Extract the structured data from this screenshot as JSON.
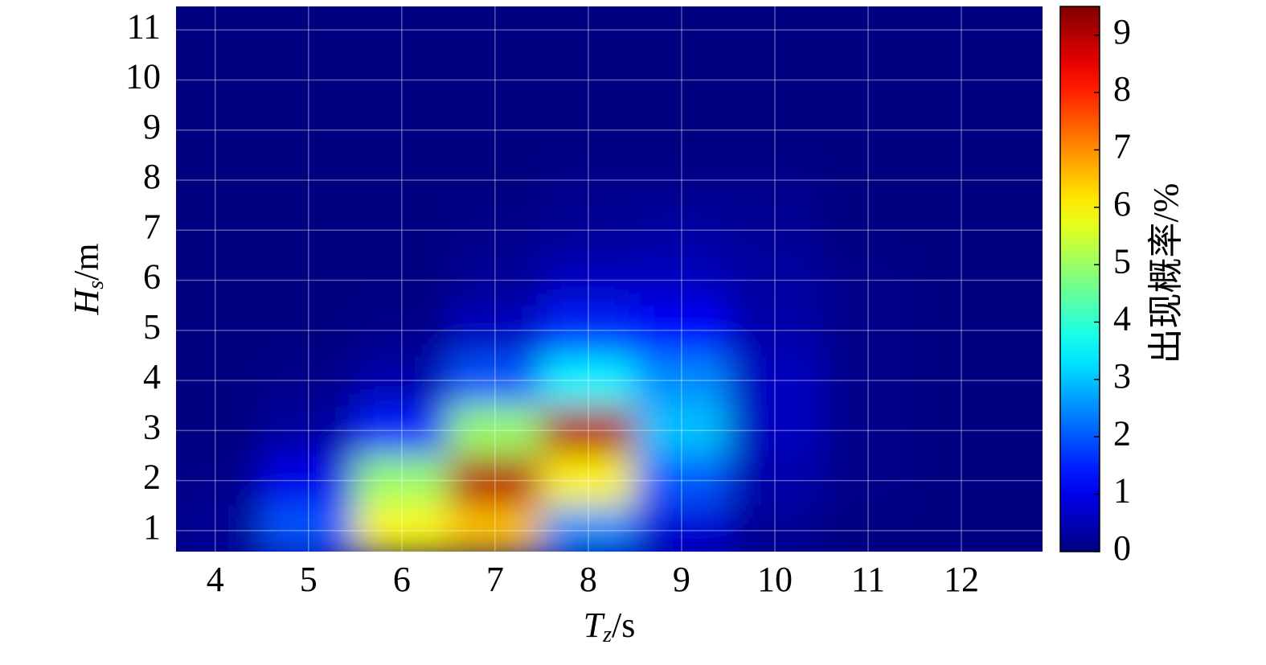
{
  "chart_data": {
    "type": "heatmap",
    "xlabel": [
      "T",
      "z",
      "/s"
    ],
    "ylabel": [
      "H",
      "s",
      "/m"
    ],
    "colorbar_label": "出现概率/%",
    "x": [
      4,
      5,
      6,
      7,
      8,
      9,
      10,
      11,
      12
    ],
    "y": [
      1,
      2,
      3,
      4,
      5,
      6,
      7,
      8,
      9,
      10,
      11
    ],
    "z": [
      [
        0.2,
        2,
        6,
        6.5,
        2.5,
        0.8,
        0.2,
        0,
        0
      ],
      [
        0.1,
        1,
        5,
        9,
        6,
        2,
        0.4,
        0.1,
        0
      ],
      [
        0,
        0.3,
        1.5,
        5,
        9,
        3,
        0.6,
        0.1,
        0
      ],
      [
        0,
        0.1,
        0.4,
        2,
        3.5,
        2.5,
        0.6,
        0.1,
        0
      ],
      [
        0,
        0,
        0.1,
        0.6,
        1.5,
        1.2,
        0.4,
        0.1,
        0
      ],
      [
        0,
        0,
        0,
        0.2,
        0.6,
        0.6,
        0.3,
        0.1,
        0
      ],
      [
        0,
        0,
        0,
        0.1,
        0.2,
        0.3,
        0.2,
        0,
        0
      ],
      [
        0,
        0,
        0,
        0,
        0.1,
        0.1,
        0.1,
        0,
        0
      ],
      [
        0,
        0,
        0,
        0,
        0,
        0,
        0,
        0,
        0
      ],
      [
        0,
        0,
        0,
        0,
        0,
        0,
        0,
        0,
        0
      ],
      [
        0,
        0,
        0,
        0,
        0,
        0,
        0,
        0,
        0
      ]
    ],
    "colormap": "jet",
    "xlim": [
      3.58,
      12.87
    ],
    "xticks": [
      4,
      5,
      6,
      7,
      8,
      9,
      10,
      11,
      12
    ],
    "ylim": [
      0.58,
      11.47
    ],
    "yticks": [
      1,
      2,
      3,
      4,
      5,
      6,
      7,
      8,
      9,
      10,
      11
    ],
    "clim": [
      0,
      9.5
    ],
    "cticks": [
      0,
      1,
      2,
      3,
      4,
      5,
      6,
      7,
      8,
      9
    ],
    "grid": true
  }
}
